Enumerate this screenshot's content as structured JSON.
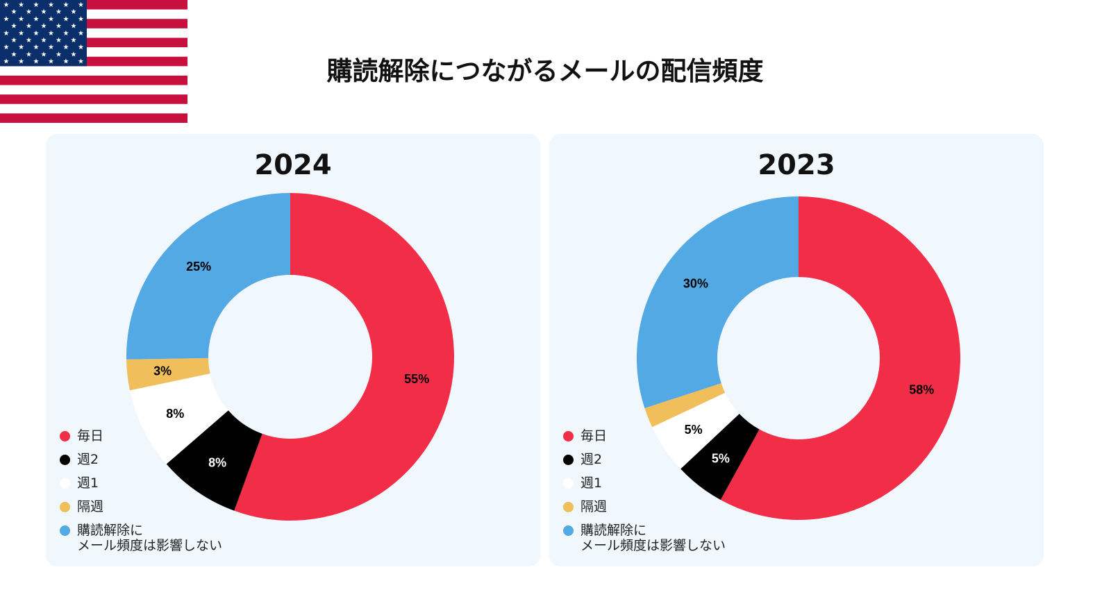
{
  "title": "購読解除につながるメールの配信頻度",
  "legend": [
    {
      "label": "毎日",
      "color": "#f22d48"
    },
    {
      "label": "週2",
      "color": "#000000"
    },
    {
      "label": "週1",
      "color": "#ffffff"
    },
    {
      "label": "隔週",
      "color": "#f0be5a"
    },
    {
      "label": "購読解除に\nメール頻度は影響しない",
      "color": "#52a9e3"
    }
  ],
  "chart_data": [
    {
      "type": "pie",
      "title": "2024",
      "categories": [
        "毎日",
        "週2",
        "週1",
        "隔週",
        "購読解除にメール頻度は影響しない"
      ],
      "values": [
        55,
        8,
        8,
        3,
        25
      ],
      "labels": [
        "55%",
        "8%",
        "8%",
        "3%",
        "25%"
      ],
      "colors": [
        "#f22d48",
        "#000000",
        "#ffffff",
        "#f0be5a",
        "#52a9e3"
      ],
      "label_colors": [
        "#000000",
        "#ffffff",
        "#000000",
        "#000000",
        "#000000"
      ],
      "legend_position": "bottom-left"
    },
    {
      "type": "pie",
      "title": "2023",
      "categories": [
        "毎日",
        "週2",
        "週1",
        "隔週",
        "購読解除にメール頻度は影響しない"
      ],
      "values": [
        58,
        5,
        5,
        2,
        30
      ],
      "labels": [
        "58%",
        "5%",
        "5%",
        "",
        "30%"
      ],
      "colors": [
        "#f22d48",
        "#000000",
        "#ffffff",
        "#f0be5a",
        "#52a9e3"
      ],
      "label_colors": [
        "#000000",
        "#ffffff",
        "#000000",
        "#000000",
        "#000000"
      ],
      "legend_position": "bottom-left"
    }
  ]
}
